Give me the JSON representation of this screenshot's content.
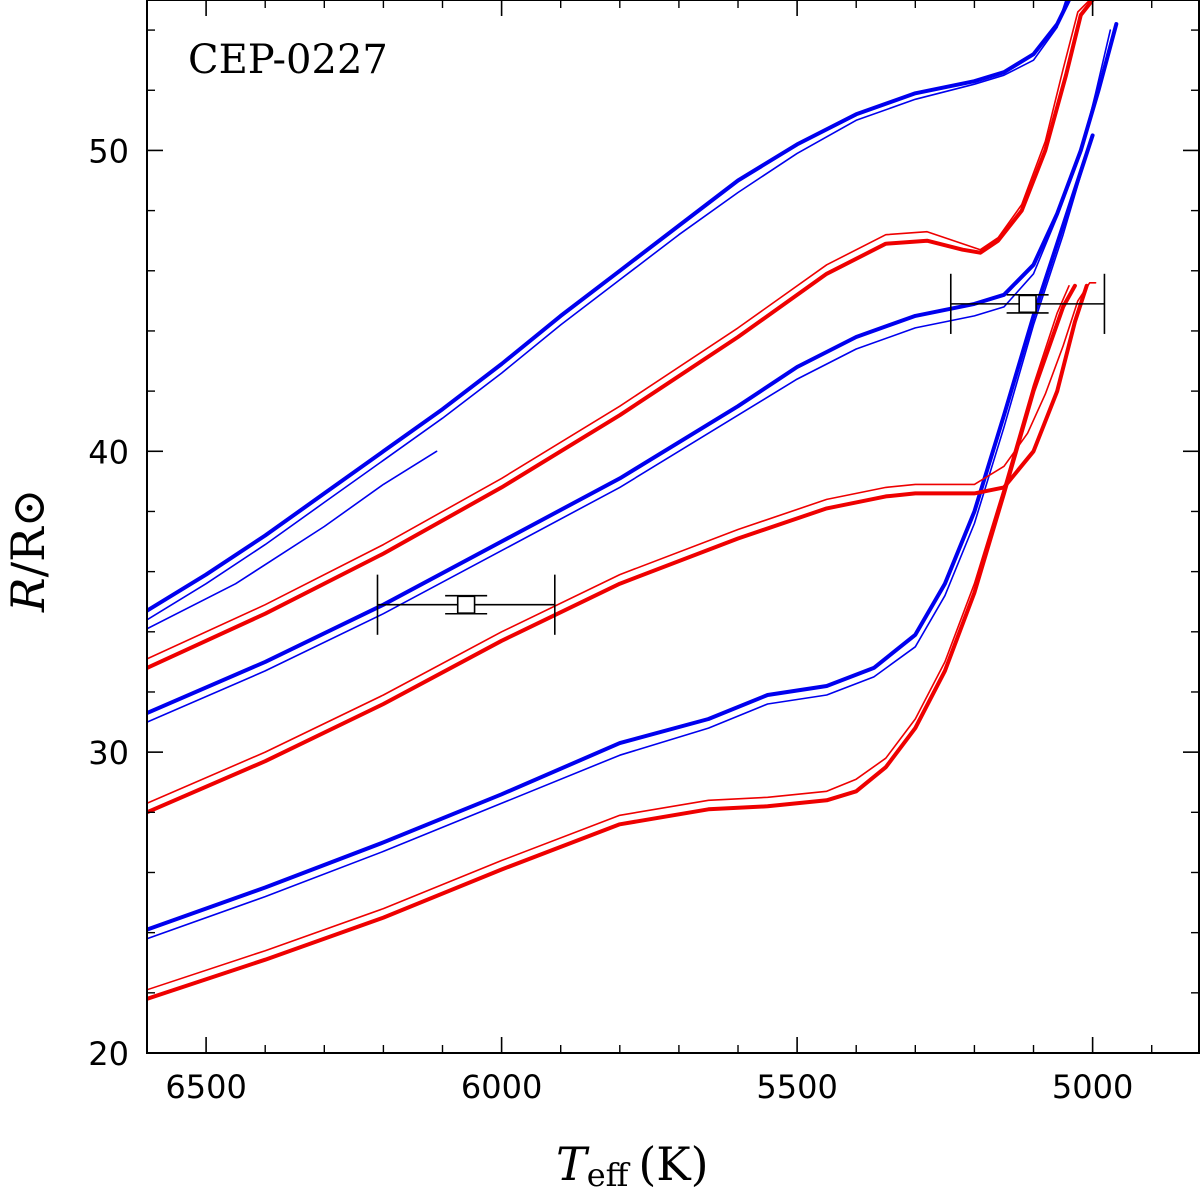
{
  "chart_data": {
    "type": "line",
    "annotation": "CEP-0227",
    "xlabel": {
      "symbol": "T",
      "subscript": "eff",
      "unit": "(K)"
    },
    "ylabel": {
      "symbol": "R",
      "unit": "/R⊙"
    },
    "xlim": [
      6600,
      4820
    ],
    "ylim": [
      20,
      55
    ],
    "x_ticks": [
      6500,
      6000,
      5500,
      5000
    ],
    "y_ticks": [
      20,
      30,
      40,
      50
    ],
    "colors": {
      "blue": "#0000ee",
      "red": "#ee0000",
      "errorbar": "#000000"
    },
    "series": [
      {
        "name": "blue-top-thick",
        "color": "#0000ee",
        "width": 4,
        "x": [
          6600,
          6500,
          6400,
          6300,
          6200,
          6100,
          6000,
          5900,
          5800,
          5700,
          5600,
          5500,
          5400,
          5300,
          5200,
          5150,
          5100,
          5060,
          5040
        ],
        "y": [
          34.7,
          35.9,
          37.2,
          38.6,
          40.0,
          41.4,
          42.9,
          44.5,
          46.0,
          47.5,
          49.0,
          50.2,
          51.2,
          51.9,
          52.3,
          52.6,
          53.2,
          54.2,
          55.0
        ]
      },
      {
        "name": "blue-top-thin",
        "color": "#0000ee",
        "width": 1.6,
        "x": [
          6600,
          6500,
          6400,
          6300,
          6200,
          6100,
          6000,
          5900,
          5800,
          5700,
          5600,
          5500,
          5400,
          5300,
          5200,
          5150,
          5100,
          5060,
          5045
        ],
        "y": [
          34.4,
          35.6,
          36.9,
          38.3,
          39.7,
          41.1,
          42.6,
          44.2,
          45.7,
          47.2,
          48.6,
          49.9,
          51.0,
          51.7,
          52.2,
          52.5,
          53.0,
          54.1,
          55.0
        ]
      },
      {
        "name": "blue-top-loop",
        "color": "#0000ee",
        "width": 1.6,
        "x": [
          6600,
          6450,
          6300,
          6200,
          6110
        ],
        "y": [
          34.1,
          35.6,
          37.5,
          38.9,
          40.0
        ]
      },
      {
        "name": "blue-mid-thick",
        "color": "#0000ee",
        "width": 4,
        "x": [
          6600,
          6400,
          6200,
          6000,
          5800,
          5600,
          5500,
          5400,
          5300,
          5200,
          5150,
          5100,
          5060,
          5020,
          4990,
          4960
        ],
        "y": [
          31.3,
          33.0,
          34.9,
          37.0,
          39.1,
          41.5,
          42.8,
          43.8,
          44.5,
          44.9,
          45.2,
          46.2,
          47.9,
          50.0,
          52.0,
          54.2
        ]
      },
      {
        "name": "blue-mid-thin",
        "color": "#0000ee",
        "width": 1.6,
        "x": [
          6600,
          6400,
          6200,
          6000,
          5800,
          5600,
          5500,
          5400,
          5300,
          5200,
          5150,
          5100,
          5060,
          5020,
          4995,
          4970
        ],
        "y": [
          31.0,
          32.7,
          34.6,
          36.7,
          38.8,
          41.2,
          42.4,
          43.4,
          44.1,
          44.5,
          44.8,
          45.9,
          47.8,
          49.9,
          51.9,
          54.0
        ]
      },
      {
        "name": "blue-low-thick",
        "color": "#0000ee",
        "width": 4,
        "x": [
          6600,
          6400,
          6200,
          6000,
          5800,
          5650,
          5550,
          5450,
          5370,
          5300,
          5250,
          5200,
          5150,
          5100,
          5050,
          5000
        ],
        "y": [
          24.1,
          25.5,
          27.0,
          28.6,
          30.3,
          31.1,
          31.9,
          32.2,
          32.8,
          33.9,
          35.6,
          38.0,
          41.2,
          44.5,
          47.5,
          50.5
        ]
      },
      {
        "name": "blue-low-thin",
        "color": "#0000ee",
        "width": 1.6,
        "x": [
          6600,
          6400,
          6200,
          6000,
          5800,
          5650,
          5550,
          5450,
          5370,
          5300,
          5250,
          5200,
          5150,
          5100,
          5050,
          5005
        ],
        "y": [
          23.8,
          25.2,
          26.7,
          28.3,
          29.9,
          30.8,
          31.6,
          31.9,
          32.5,
          33.5,
          35.2,
          37.6,
          40.8,
          44.2,
          47.2,
          50.2
        ]
      },
      {
        "name": "red-top-thick",
        "color": "#ee0000",
        "width": 4,
        "x": [
          6600,
          6400,
          6200,
          6000,
          5800,
          5600,
          5450,
          5350,
          5280,
          5220,
          5190,
          5160,
          5120,
          5080,
          5045,
          5020,
          5000
        ],
        "y": [
          32.8,
          34.6,
          36.6,
          38.8,
          41.2,
          43.8,
          45.9,
          46.9,
          47.0,
          46.7,
          46.6,
          47.0,
          48.0,
          50.0,
          52.5,
          54.5,
          55.0
        ]
      },
      {
        "name": "red-top-thin",
        "color": "#ee0000",
        "width": 1.6,
        "x": [
          6600,
          6400,
          6200,
          6000,
          5800,
          5600,
          5450,
          5350,
          5280,
          5220,
          5190,
          5160,
          5120,
          5080,
          5050,
          5025,
          5005
        ],
        "y": [
          33.1,
          34.9,
          36.9,
          39.1,
          41.5,
          44.1,
          46.2,
          47.2,
          47.3,
          46.9,
          46.7,
          47.1,
          48.2,
          50.3,
          52.7,
          54.6,
          55.0
        ]
      },
      {
        "name": "red-mid-thick",
        "color": "#ee0000",
        "width": 4,
        "x": [
          6600,
          6400,
          6200,
          6000,
          5800,
          5600,
          5450,
          5350,
          5300,
          5200,
          5150,
          5100,
          5060,
          5030,
          5010
        ],
        "y": [
          28.0,
          29.7,
          31.6,
          33.7,
          35.6,
          37.1,
          38.1,
          38.5,
          38.6,
          38.6,
          38.8,
          40.0,
          42.0,
          44.3,
          45.5
        ]
      },
      {
        "name": "red-mid-thin",
        "color": "#ee0000",
        "width": 1.6,
        "x": [
          6600,
          6400,
          6200,
          6000,
          5800,
          5600,
          5450,
          5350,
          5300,
          5200,
          5150,
          5110,
          5080,
          5050,
          5025,
          5005,
          4995
        ],
        "y": [
          28.3,
          30.0,
          31.9,
          34.0,
          35.9,
          37.4,
          38.4,
          38.8,
          38.9,
          38.9,
          39.5,
          40.6,
          41.9,
          43.5,
          45.0,
          45.6,
          45.6
        ]
      },
      {
        "name": "red-low-thick",
        "color": "#ee0000",
        "width": 4,
        "x": [
          6600,
          6400,
          6200,
          6000,
          5800,
          5650,
          5550,
          5450,
          5400,
          5350,
          5300,
          5250,
          5200,
          5150,
          5100,
          5050,
          5030
        ],
        "y": [
          21.8,
          23.1,
          24.5,
          26.1,
          27.6,
          28.1,
          28.2,
          28.4,
          28.7,
          29.5,
          30.8,
          32.7,
          35.3,
          38.6,
          42.0,
          44.8,
          45.5
        ]
      },
      {
        "name": "red-low-thin",
        "color": "#ee0000",
        "width": 1.6,
        "x": [
          6600,
          6400,
          6200,
          6000,
          5800,
          5650,
          5550,
          5450,
          5400,
          5350,
          5300,
          5250,
          5200,
          5150,
          5100,
          5060,
          5040
        ],
        "y": [
          22.1,
          23.4,
          24.8,
          26.4,
          27.9,
          28.4,
          28.5,
          28.7,
          29.1,
          29.8,
          31.1,
          33.0,
          35.6,
          38.8,
          42.2,
          44.6,
          45.5
        ]
      }
    ],
    "points": [
      {
        "name": "observation-1",
        "teff": 6060,
        "teff_err_minus": 150,
        "teff_err_plus": 150,
        "teff_err_cap": 1,
        "radius": 34.9,
        "radius_err_cap": 0.3,
        "radius_box": 0.28
      },
      {
        "name": "observation-2",
        "teff": 5110,
        "teff_err_minus": 130,
        "teff_err_plus": 130,
        "teff_err_cap": 1,
        "radius": 44.9,
        "radius_err_cap": 0.3,
        "radius_box": 0.28
      }
    ]
  }
}
